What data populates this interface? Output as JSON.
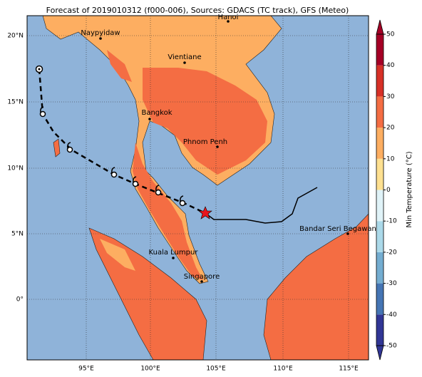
{
  "title": "Forecast of 2019010312 (f000-006), Sources: GDACS (TC track), GFS (Meteo)",
  "cities": [
    "Hanoi",
    "Naypyidaw",
    "Vientiane",
    "Bangkok",
    "Phnom Penh",
    "Bandar Seri Begawan",
    "Kuala Lumpur",
    "Singapore"
  ],
  "lon_labels": [
    "95°E",
    "100°E",
    "105°E",
    "110°E",
    "115°E"
  ],
  "lat_labels": [
    "20°N",
    "15°N",
    "10°N",
    "5°N",
    "0°"
  ],
  "colorbar": {
    "label": "Min Temperature (°C)",
    "ticks": [
      -50,
      -40,
      -30,
      -20,
      -10,
      0,
      10,
      20,
      30,
      40,
      50
    ],
    "colors": [
      "#313695",
      "#4575b4",
      "#74add1",
      "#abd9e9",
      "#e0f3f8",
      "#fee090",
      "#fdae61",
      "#f46d43",
      "#d73027",
      "#a50026"
    ]
  }
}
